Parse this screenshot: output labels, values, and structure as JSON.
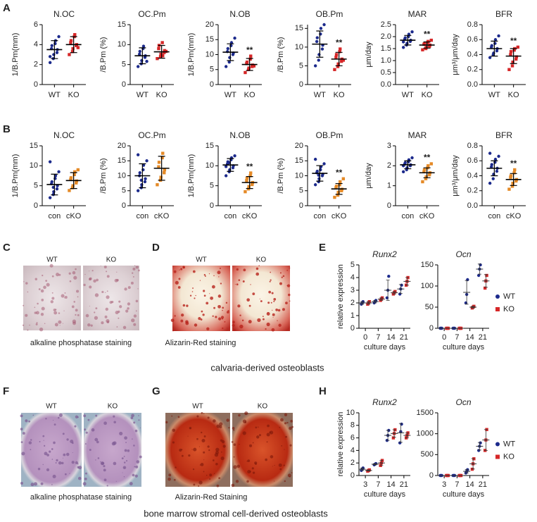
{
  "letters": [
    "A",
    "B",
    "C",
    "D",
    "E",
    "F",
    "G",
    "H"
  ],
  "panels": {
    "C": {
      "labels": [
        "WT",
        "KO"
      ],
      "caption": "alkaline phosphatase staining"
    },
    "D": {
      "labels": [
        "WT",
        "KO"
      ],
      "caption": "Alizarin-Red staining"
    },
    "F": {
      "labels": [
        "WT",
        "KO"
      ],
      "caption": "alkaline phosphatase staining"
    },
    "G": {
      "labels": [
        "WT",
        "KO"
      ],
      "caption": "Alizarin-Red Staining"
    }
  },
  "section_captions": [
    "calvaria-derived osteoblasts",
    "bone marrow stromal cell-derived osteoblasts"
  ],
  "chart_data": [
    {
      "type": "dot",
      "title": "N.OC",
      "ylabel": "1/B.Pm(mm)",
      "ylim": [
        0,
        6
      ],
      "yticks": [
        0,
        2,
        4,
        6
      ],
      "groups": [
        {
          "name": "WT",
          "color": "#1c2a8c",
          "marker": "circle",
          "points": [
            2.2,
            2.6,
            3.0,
            3.2,
            3.5,
            3.6,
            3.9,
            4.1,
            4.4,
            4.8,
            2.8
          ],
          "mean": 3.5,
          "sd": 0.9
        },
        {
          "name": "KO",
          "color": "#d62728",
          "marker": "square",
          "points": [
            3.0,
            3.3,
            3.6,
            3.9,
            4.0,
            4.2,
            4.4,
            4.8,
            5.0,
            3.7
          ],
          "mean": 4.0,
          "sd": 0.8
        }
      ]
    },
    {
      "type": "dot",
      "title": "OC.Pm",
      "ylabel": "/B.Pm (%)",
      "ylim": [
        0,
        15
      ],
      "yticks": [
        0,
        5,
        10,
        15
      ],
      "groups": [
        {
          "name": "WT",
          "color": "#1c2a8c",
          "marker": "circle",
          "points": [
            4.5,
            5.2,
            6.0,
            6.8,
            7.2,
            7.6,
            8.3,
            9.0,
            9.6,
            5.8
          ],
          "mean": 7.2,
          "sd": 2
        },
        {
          "name": "KO",
          "color": "#d62728",
          "marker": "square",
          "points": [
            6.5,
            7.0,
            7.6,
            8.0,
            8.5,
            9.0,
            9.8,
            10.5,
            7.2,
            8.3
          ],
          "mean": 8.2,
          "sd": 1.6
        }
      ]
    },
    {
      "type": "dot",
      "title": "N.OB",
      "ylabel": "1/B.Pm(mm)",
      "ylim": [
        0,
        20
      ],
      "yticks": [
        0,
        5,
        10,
        15,
        20
      ],
      "annotation": "**",
      "groups": [
        {
          "name": "WT",
          "color": "#1c2a8c",
          "marker": "circle",
          "points": [
            6,
            7.5,
            9,
            10,
            10.5,
            11,
            12,
            13,
            14,
            15.5
          ],
          "mean": 10.8,
          "sd": 2.8
        },
        {
          "name": "KO",
          "color": "#d62728",
          "marker": "square",
          "points": [
            4,
            5,
            5.5,
            6,
            6.5,
            7,
            7.5,
            8.5,
            9.5,
            6.2
          ],
          "mean": 6.7,
          "sd": 2
        }
      ]
    },
    {
      "type": "dot",
      "title": "OB.Pm",
      "ylabel": "/B.Pm (%)",
      "ylim": [
        0,
        16
      ],
      "yticks": [
        0,
        5,
        10,
        15
      ],
      "annotation": "**",
      "groups": [
        {
          "name": "WT",
          "color": "#1c2a8c",
          "marker": "circle",
          "points": [
            5,
            6.5,
            8,
            9.5,
            10.5,
            11.5,
            12.5,
            13.5,
            15,
            16
          ],
          "mean": 10.8,
          "sd": 3.5
        },
        {
          "name": "KO",
          "color": "#d62728",
          "marker": "square",
          "points": [
            4,
            4.8,
            5.5,
            6.2,
            6.8,
            7.3,
            8,
            8.8,
            9.5,
            6.5
          ],
          "mean": 6.8,
          "sd": 1.8
        }
      ]
    },
    {
      "type": "dot",
      "title": "MAR",
      "ylabel": "μm/day",
      "ylim": [
        0,
        2.5
      ],
      "yticks": [
        {
          "value": 0,
          "label": "0.0"
        },
        0.5,
        {
          "value": 1,
          "label": "1.0"
        },
        1.5,
        {
          "value": 2,
          "label": "2.0"
        },
        2.5
      ],
      "annotation": "**",
      "groups": [
        {
          "name": "WT",
          "color": "#1c2a8c",
          "marker": "circle",
          "points": [
            1.55,
            1.65,
            1.72,
            1.8,
            1.85,
            1.9,
            1.95,
            2.0,
            2.1,
            2.2,
            1.78
          ],
          "mean": 1.85,
          "sd": 0.2
        },
        {
          "name": "KO",
          "color": "#d62728",
          "marker": "square",
          "points": [
            1.45,
            1.5,
            1.55,
            1.6,
            1.65,
            1.68,
            1.7,
            1.75,
            1.8,
            1.85
          ],
          "mean": 1.65,
          "sd": 0.13
        }
      ]
    },
    {
      "type": "dot",
      "title": "BFR",
      "ylabel": "μm³/μm/day",
      "ylim": [
        0,
        0.8
      ],
      "yticks": [
        {
          "value": 0,
          "label": "0.0"
        },
        0.2,
        0.4,
        0.6,
        0.8
      ],
      "annotation": "**",
      "groups": [
        {
          "name": "WT",
          "color": "#1c2a8c",
          "marker": "circle",
          "points": [
            0.36,
            0.4,
            0.42,
            0.45,
            0.48,
            0.5,
            0.52,
            0.55,
            0.6,
            0.65
          ],
          "mean": 0.48,
          "sd": 0.1
        },
        {
          "name": "KO",
          "color": "#d62728",
          "marker": "square",
          "points": [
            0.2,
            0.25,
            0.3,
            0.34,
            0.37,
            0.4,
            0.44,
            0.46,
            0.48,
            0.5
          ],
          "mean": 0.38,
          "sd": 0.1
        }
      ]
    },
    {
      "type": "dot",
      "title": "N.OC",
      "ylabel": "1/B.Pm(mm)",
      "ylim": [
        0,
        15
      ],
      "yticks": [
        0,
        5,
        10,
        15
      ],
      "groups": [
        {
          "name": "con",
          "color": "#1c2a8c",
          "marker": "circle",
          "points": [
            2,
            2.8,
            3.5,
            4.2,
            5,
            5.5,
            6,
            6.8,
            7.5,
            8.5,
            11,
            4.6
          ],
          "mean": 5.3,
          "sd": 2.6
        },
        {
          "name": "cKO",
          "color": "#e58a27",
          "marker": "square",
          "points": [
            3.8,
            4.5,
            5,
            5.7,
            6.2,
            6.6,
            7,
            7.8,
            8.5,
            9
          ],
          "mean": 6.3,
          "sd": 2
        }
      ]
    },
    {
      "type": "dot",
      "title": "OC.Pm",
      "ylabel": "/B.Pm (%)",
      "ylim": [
        0,
        20
      ],
      "yticks": [
        0,
        5,
        10,
        15,
        20
      ],
      "groups": [
        {
          "name": "con",
          "color": "#1c2a8c",
          "marker": "circle",
          "points": [
            5,
            6,
            7,
            8,
            9,
            10,
            11,
            12,
            13.5,
            15,
            17,
            8.5
          ],
          "mean": 10,
          "sd": 4
        },
        {
          "name": "cKO",
          "color": "#e58a27",
          "marker": "square",
          "points": [
            7,
            8.5,
            9.5,
            11,
            12,
            13,
            14.5,
            16,
            17.5
          ],
          "mean": 12.5,
          "sd": 4
        }
      ]
    },
    {
      "type": "dot",
      "title": "N.OB",
      "ylabel": "1/B.Pm(mm)",
      "ylim": [
        0,
        15
      ],
      "yticks": [
        0,
        5,
        10,
        15
      ],
      "annotation": "**",
      "groups": [
        {
          "name": "con",
          "color": "#1c2a8c",
          "marker": "circle",
          "points": [
            7.5,
            8.5,
            9,
            9.5,
            10,
            10.5,
            11,
            11.5,
            12,
            12.5,
            9.8,
            10.8
          ],
          "mean": 10.2,
          "sd": 1.6
        },
        {
          "name": "cKO",
          "color": "#e58a27",
          "marker": "square",
          "points": [
            3.5,
            4.2,
            4.8,
            5.3,
            5.8,
            6.3,
            6.9,
            7.5,
            8.2
          ],
          "mean": 5.8,
          "sd": 1.5
        }
      ]
    },
    {
      "type": "dot",
      "title": "OB.Pm",
      "ylabel": "/B.Pm (%)",
      "ylim": [
        0,
        20
      ],
      "yticks": [
        0,
        5,
        10,
        15,
        20
      ],
      "annotation": "**",
      "groups": [
        {
          "name": "con",
          "color": "#1c2a8c",
          "marker": "circle",
          "points": [
            7,
            8,
            9,
            10,
            10.5,
            11,
            11.5,
            12,
            13,
            14,
            15.5,
            10.2
          ],
          "mean": 10.8,
          "sd": 2.6
        },
        {
          "name": "cKO",
          "color": "#e58a27",
          "marker": "square",
          "points": [
            2.8,
            3.5,
            4.5,
            5,
            5.5,
            6,
            6.5,
            7,
            8,
            9
          ],
          "mean": 5.6,
          "sd": 1.8
        }
      ]
    },
    {
      "type": "dot",
      "title": "MAR",
      "ylabel": "μm/day",
      "ylim": [
        0,
        3
      ],
      "yticks": [
        0,
        1,
        2,
        3
      ],
      "annotation": "**",
      "groups": [
        {
          "name": "con",
          "color": "#1c2a8c",
          "marker": "circle",
          "points": [
            1.7,
            1.8,
            1.9,
            2.0,
            2.05,
            2.1,
            2.15,
            2.2,
            2.3,
            2.4,
            2.0
          ],
          "mean": 2.05,
          "sd": 0.2
        },
        {
          "name": "cKO",
          "color": "#e58a27",
          "marker": "square",
          "points": [
            1.2,
            1.35,
            1.45,
            1.55,
            1.65,
            1.7,
            1.8,
            1.9,
            2.0,
            2.1
          ],
          "mean": 1.65,
          "sd": 0.25
        }
      ]
    },
    {
      "type": "dot",
      "title": "BFR",
      "ylabel": "μm³/μm/day",
      "ylim": [
        0,
        0.8
      ],
      "yticks": [
        {
          "value": 0,
          "label": "0.0"
        },
        0.2,
        0.4,
        0.6,
        0.8
      ],
      "annotation": "**",
      "groups": [
        {
          "name": "con",
          "color": "#1c2a8c",
          "marker": "circle",
          "points": [
            0.3,
            0.36,
            0.42,
            0.46,
            0.5,
            0.52,
            0.55,
            0.58,
            0.62,
            0.66,
            0.7
          ],
          "mean": 0.5,
          "sd": 0.1
        },
        {
          "name": "cKO",
          "color": "#e58a27",
          "marker": "square",
          "points": [
            0.22,
            0.26,
            0.3,
            0.33,
            0.35,
            0.38,
            0.4,
            0.44,
            0.48
          ],
          "mean": 0.35,
          "sd": 0.08
        }
      ]
    },
    {
      "type": "timecourse",
      "title": "Runx2",
      "ylabel": "relative expression",
      "xlabel": "culture days",
      "categories": [
        "0",
        "7",
        "14",
        "21"
      ],
      "ylim": [
        0,
        5
      ],
      "yticks": [
        0,
        1,
        2,
        3,
        4,
        5
      ],
      "series": [
        {
          "name": "WT",
          "color": "#1c2a8c",
          "marker": "circle",
          "points": [
            [
              1.9,
              2.0,
              2.1
            ],
            [
              2.0,
              2.1,
              2.2
            ],
            [
              2.4,
              3.0,
              4.1
            ],
            [
              2.7,
              3.1,
              3.4
            ]
          ],
          "mean": [
            2.0,
            2.1,
            3.0,
            3.1
          ],
          "sd": [
            0.1,
            0.1,
            0.8,
            0.35
          ]
        },
        {
          "name": "KO",
          "color": "#d62728",
          "marker": "square",
          "points": [
            [
              1.9,
              2.0,
              2.1
            ],
            [
              2.2,
              2.3,
              2.4
            ],
            [
              2.7,
              2.8,
              2.9
            ],
            [
              3.4,
              3.7,
              4.0
            ]
          ],
          "mean": [
            2.0,
            2.3,
            2.8,
            3.7
          ],
          "sd": [
            0.1,
            0.1,
            0.1,
            0.3
          ]
        }
      ]
    },
    {
      "type": "timecourse",
      "title": "Ocn",
      "xlabel": "culture days",
      "categories": [
        "0",
        "7",
        "14",
        "21"
      ],
      "ylim": [
        0,
        150
      ],
      "yticks": [
        0,
        50,
        100,
        150
      ],
      "legend": "right",
      "series": [
        {
          "name": "WT",
          "color": "#1c2a8c",
          "marker": "circle",
          "points": [
            [
              0,
              0,
              0
            ],
            [
              0,
              0,
              0
            ],
            [
              60,
              80,
              115
            ],
            [
              125,
              140,
              150
            ]
          ],
          "mean": [
            0,
            0,
            85,
            140
          ],
          "sd": [
            0,
            0,
            28,
            12
          ]
        },
        {
          "name": "KO",
          "color": "#d62728",
          "marker": "square",
          "points": [
            [
              0,
              0,
              0
            ],
            [
              0,
              0,
              0
            ],
            [
              48,
              50,
              52
            ],
            [
              95,
              112,
              125
            ]
          ],
          "mean": [
            0,
            0,
            50,
            112
          ],
          "sd": [
            0,
            0,
            2,
            15
          ]
        }
      ]
    },
    {
      "type": "timecourse",
      "title": "Runx2",
      "ylabel": "relative expression",
      "xlabel": "culture days",
      "categories": [
        "3",
        "7",
        "14",
        "21"
      ],
      "ylim": [
        0,
        10
      ],
      "yticks": [
        0,
        2,
        4,
        6,
        8,
        10
      ],
      "series": [
        {
          "name": "WT",
          "color": "#1c2a8c",
          "marker": "circle",
          "points": [
            [
              0.8,
              1.0,
              1.2
            ],
            [
              1.7,
              1.8,
              1.9
            ],
            [
              5.6,
              6.4,
              7.2
            ],
            [
              5.2,
              7.0,
              8.2
            ]
          ],
          "mean": [
            1.0,
            1.8,
            6.4,
            6.8
          ],
          "sd": [
            0.2,
            0.1,
            0.8,
            1.5
          ]
        },
        {
          "name": "KO",
          "color": "#d62728",
          "marker": "square",
          "points": [
            [
              0.7,
              0.8,
              0.9
            ],
            [
              1.6,
              2.0,
              2.4
            ],
            [
              6.0,
              6.7,
              7.3
            ],
            [
              6.0,
              6.4,
              6.8
            ]
          ],
          "mean": [
            0.8,
            2.0,
            6.7,
            6.4
          ],
          "sd": [
            0.1,
            0.4,
            0.6,
            0.4
          ]
        }
      ]
    },
    {
      "type": "timecourse",
      "title": "Ocn",
      "xlabel": "culture days",
      "categories": [
        "3",
        "7",
        "14",
        "21"
      ],
      "ylim": [
        0,
        1500
      ],
      "yticks": [
        0,
        500,
        1000,
        1500
      ],
      "legend": "right",
      "series": [
        {
          "name": "WT",
          "color": "#1c2a8c",
          "marker": "circle",
          "points": [
            [
              0,
              0,
              0
            ],
            [
              0,
              0,
              0
            ],
            [
              60,
              100,
              140
            ],
            [
              600,
              700,
              780
            ]
          ],
          "mean": [
            0,
            0,
            100,
            700
          ],
          "sd": [
            0,
            0,
            40,
            90
          ]
        },
        {
          "name": "KO",
          "color": "#d62728",
          "marker": "square",
          "points": [
            [
              0,
              0,
              0
            ],
            [
              0,
              0,
              0
            ],
            [
              150,
              280,
              400
            ],
            [
              600,
              850,
              1100
            ]
          ],
          "mean": [
            0,
            0,
            280,
            850
          ],
          "sd": [
            0,
            0,
            125,
            250
          ]
        }
      ]
    }
  ]
}
